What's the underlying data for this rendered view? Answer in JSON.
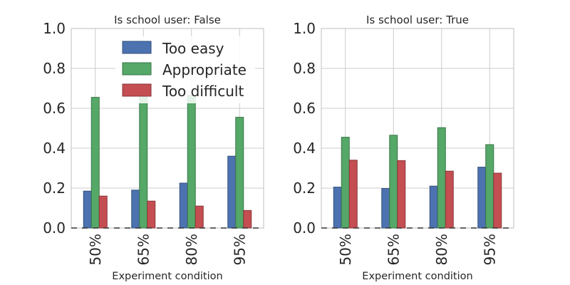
{
  "chart_data": {
    "type": "bar",
    "legend": {
      "placement": "top-center",
      "entries": [
        "Too easy",
        "Appropriate",
        "Too difficult"
      ]
    },
    "colors": [
      "#4c72b0",
      "#55a868",
      "#c44e52"
    ],
    "series_names": [
      "Too easy",
      "Appropriate",
      "Too difficult"
    ],
    "grid": true,
    "xlabel": "Experiment condition",
    "ylim": [
      0,
      1
    ],
    "yticks": [
      "0.0",
      "0.2",
      "0.4",
      "0.6",
      "0.8",
      "1.0"
    ],
    "yticks_values": [
      0,
      0.2,
      0.4,
      0.6,
      0.8,
      1.0
    ],
    "categories": [
      "50%",
      "65%",
      "80%",
      "95%"
    ],
    "panels": [
      {
        "title": "Is school user: False",
        "series": [
          {
            "name": "Too easy",
            "values": [
              0.185,
              0.19,
              0.225,
              0.36
            ]
          },
          {
            "name": "Appropriate",
            "values": [
              0.655,
              0.665,
              0.665,
              0.555
            ]
          },
          {
            "name": "Too difficult",
            "values": [
              0.16,
              0.135,
              0.11,
              0.088
            ]
          }
        ]
      },
      {
        "title": "Is school user: True",
        "series": [
          {
            "name": "Too easy",
            "values": [
              0.205,
              0.198,
              0.21,
              0.305
            ]
          },
          {
            "name": "Appropriate",
            "values": [
              0.455,
              0.465,
              0.503,
              0.418
            ]
          },
          {
            "name": "Too difficult",
            "values": [
              0.34,
              0.338,
              0.285,
              0.275
            ]
          }
        ]
      }
    ]
  }
}
